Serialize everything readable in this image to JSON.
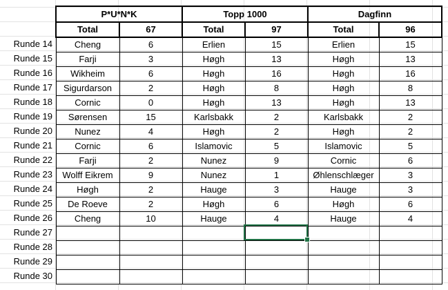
{
  "teams": [
    {
      "name": "P*U*N*K",
      "total_label": "Total",
      "total": "67"
    },
    {
      "name": "Topp 1000",
      "total_label": "Total",
      "total": "97"
    },
    {
      "name": "Dagfinn",
      "total_label": "Total",
      "total": "96"
    }
  ],
  "rows": [
    {
      "label": "Runde 14",
      "cells": [
        "Cheng",
        "6",
        "Erlien",
        "15",
        "Erlien",
        "15"
      ]
    },
    {
      "label": "Runde 15",
      "cells": [
        "Farji",
        "3",
        "Høgh",
        "13",
        "Høgh",
        "13"
      ]
    },
    {
      "label": "Runde 16",
      "cells": [
        "Wikheim",
        "6",
        "Høgh",
        "16",
        "Høgh",
        "16"
      ]
    },
    {
      "label": "Runde 17",
      "cells": [
        "Sigurdarson",
        "2",
        "Høgh",
        "8",
        "Høgh",
        "8"
      ]
    },
    {
      "label": "Runde 18",
      "cells": [
        "Cornic",
        "0",
        "Høgh",
        "13",
        "Høgh",
        "13"
      ]
    },
    {
      "label": "Runde 19",
      "cells": [
        "Sørensen",
        "15",
        "Karlsbakk",
        "2",
        "Karlsbakk",
        "2"
      ]
    },
    {
      "label": "Runde 20",
      "cells": [
        "Nunez",
        "4",
        "Høgh",
        "2",
        "Høgh",
        "2"
      ]
    },
    {
      "label": "Runde 21",
      "cells": [
        "Cornic",
        "6",
        "Islamovic",
        "5",
        "Islamovic",
        "5"
      ]
    },
    {
      "label": "Runde 22",
      "cells": [
        "Farji",
        "2",
        "Nunez",
        "9",
        "Cornic",
        "6"
      ]
    },
    {
      "label": "Runde 23",
      "cells": [
        "Wolff Eikrem",
        "9",
        "Nunez",
        "1",
        "Øhlenschlæger",
        "3"
      ]
    },
    {
      "label": "Runde 24",
      "cells": [
        "Høgh",
        "2",
        "Hauge",
        "3",
        "Hauge",
        "3"
      ]
    },
    {
      "label": "Runde 25",
      "cells": [
        "De Roeve",
        "2",
        "Høgh",
        "6",
        "Høgh",
        "6"
      ]
    },
    {
      "label": "Runde 26",
      "cells": [
        "Cheng",
        "10",
        "Hauge",
        "4",
        "Hauge",
        "4"
      ]
    },
    {
      "label": "Runde 27",
      "cells": [
        "",
        "",
        "",
        "",
        "",
        ""
      ]
    },
    {
      "label": "Runde 28",
      "cells": [
        "",
        "",
        "",
        "",
        "",
        ""
      ]
    },
    {
      "label": "Runde 29",
      "cells": [
        "",
        "",
        "",
        "",
        "",
        ""
      ]
    },
    {
      "label": "Runde 30",
      "cells": [
        "",
        "",
        "",
        "",
        "",
        ""
      ]
    }
  ],
  "selection_color": "#217346"
}
